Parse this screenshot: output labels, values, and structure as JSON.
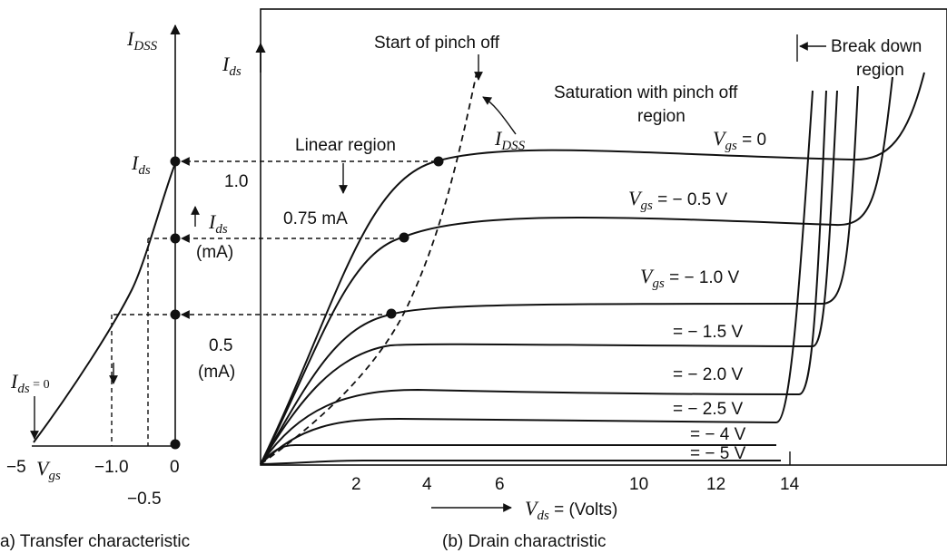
{
  "transfer": {
    "y_axis_label": {
      "main": "I",
      "sub": "DSS"
    },
    "point_label": {
      "main": "I",
      "sub": "ds"
    },
    "zero_label": {
      "main": "I",
      "sub": "ds",
      "tail": " = 0"
    },
    "x_axis_label": {
      "main": "V",
      "sub": "gs"
    },
    "ticks": [
      "−5",
      "−1.0",
      "0",
      "−0.5"
    ],
    "caption": "a) Transfer characteristic"
  },
  "drain": {
    "y_axis_label": {
      "main": "I",
      "sub": "ds"
    },
    "pinch_label": "Start of pinch off",
    "idss_label": {
      "main": "I",
      "sub": "DSS"
    },
    "linear_label": "Linear region",
    "saturation_label": [
      "Saturation with pinch off",
      "region"
    ],
    "breakdown_label": [
      "Break down",
      "region"
    ],
    "level_1_0": "1.0",
    "level_0_75": "0.75 mA",
    "ids_ma": {
      "main": "I",
      "sub": "ds",
      "unit": "(mA)"
    },
    "level_0_5": [
      "0.5",
      "(mA)"
    ],
    "curve_labels": {
      "vgs_0": {
        "main": "V",
        "sub": "gs",
        "tail": " = 0"
      },
      "vgs_05": {
        "main": "V",
        "sub": "gs",
        "tail": " = − 0.5 V"
      },
      "vgs_10": {
        "main": "V",
        "sub": "gs",
        "tail": " = − 1.0 V"
      },
      "vgs_15": "= − 1.5 V",
      "vgs_20": "= − 2.0 V",
      "vgs_25": "= − 2.5 V",
      "vgs_4": "= − 4 V",
      "vgs_5": "= − 5 V"
    },
    "x_ticks": [
      "2",
      "4",
      "6",
      "10",
      "12",
      "14"
    ],
    "x_axis_label": {
      "main": "V",
      "sub": "ds",
      "tail": " = (Volts)"
    },
    "caption": "(b) Drain charactristic"
  }
}
